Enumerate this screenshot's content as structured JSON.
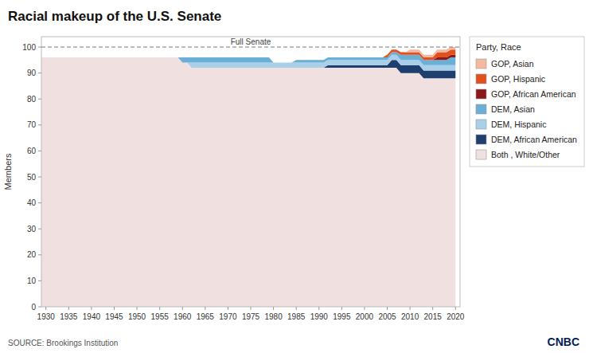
{
  "chart_data": {
    "type": "area",
    "stacked": true,
    "title": "Racial makeup of the U.S. Senate",
    "y_label": "Members",
    "source": "SOURCE: Brookings Institution",
    "legend_title": "Party, Race",
    "legend": "right",
    "grid": false,
    "xlim": [
      1929,
      2021
    ],
    "ylim": [
      0,
      104
    ],
    "yticks": [
      0,
      10,
      20,
      30,
      40,
      50,
      60,
      70,
      80,
      90,
      100
    ],
    "xticks": [
      1930,
      1935,
      1940,
      1945,
      1950,
      1955,
      1960,
      1965,
      1970,
      1975,
      1980,
      1985,
      1990,
      1995,
      2000,
      2005,
      2010,
      2015,
      2020
    ],
    "annotations": [
      {
        "text": "Full Senate",
        "y": 100
      },
      {
        "text": "CNBC"
      }
    ],
    "x": [
      1929,
      1930,
      1931,
      1932,
      1933,
      1934,
      1935,
      1936,
      1937,
      1938,
      1939,
      1940,
      1941,
      1942,
      1943,
      1944,
      1945,
      1946,
      1947,
      1948,
      1949,
      1950,
      1951,
      1952,
      1953,
      1954,
      1955,
      1956,
      1957,
      1958,
      1959,
      1960,
      1961,
      1962,
      1963,
      1964,
      1965,
      1966,
      1967,
      1968,
      1969,
      1970,
      1971,
      1972,
      1973,
      1974,
      1975,
      1976,
      1977,
      1978,
      1979,
      1980,
      1981,
      1982,
      1983,
      1984,
      1985,
      1986,
      1987,
      1988,
      1989,
      1990,
      1991,
      1992,
      1993,
      1994,
      1995,
      1996,
      1997,
      1998,
      1999,
      2000,
      2001,
      2002,
      2003,
      2004,
      2005,
      2006,
      2007,
      2008,
      2009,
      2010,
      2011,
      2012,
      2013,
      2014,
      2015,
      2016,
      2017,
      2018,
      2019,
      2020
    ],
    "series": [
      {
        "name": "Both , White/Other",
        "color": "#f0e0e0",
        "values": [
          96,
          96,
          96,
          96,
          96,
          96,
          96,
          96,
          96,
          96,
          96,
          96,
          96,
          96,
          96,
          96,
          96,
          96,
          96,
          96,
          96,
          96,
          96,
          96,
          96,
          96,
          96,
          96,
          96,
          96,
          96,
          94,
          94,
          92,
          92,
          92,
          92,
          92,
          92,
          92,
          92,
          92,
          92,
          92,
          92,
          92,
          92,
          92,
          92,
          92,
          92,
          92,
          92,
          92,
          92,
          92,
          92,
          92,
          92,
          92,
          92,
          92,
          92,
          92,
          92,
          92,
          92,
          92,
          92,
          92,
          92,
          92,
          92,
          92,
          92,
          92,
          92,
          92,
          92,
          90,
          90,
          90,
          90,
          90,
          88,
          88,
          88,
          88,
          88,
          88,
          88,
          88
        ]
      },
      {
        "name": "DEM, African American",
        "color": "#1f3f6e",
        "values": [
          0,
          0,
          0,
          0,
          0,
          0,
          0,
          0,
          0,
          0,
          0,
          0,
          0,
          0,
          0,
          0,
          0,
          0,
          0,
          0,
          0,
          0,
          0,
          0,
          0,
          0,
          0,
          0,
          0,
          0,
          0,
          0,
          0,
          0,
          0,
          0,
          0,
          0,
          0,
          0,
          0,
          0,
          0,
          0,
          0,
          0,
          0,
          0,
          0,
          0,
          0,
          0,
          0,
          0,
          0,
          0,
          0,
          0,
          0,
          0,
          0,
          0,
          0,
          1,
          1,
          1,
          1,
          1,
          1,
          1,
          1,
          1,
          1,
          1,
          1,
          1,
          1,
          3,
          3,
          3,
          3,
          3,
          3,
          3,
          3,
          3,
          3,
          3,
          3,
          3,
          3,
          3
        ]
      },
      {
        "name": "DEM, Hispanic",
        "color": "#aacfe8",
        "values": [
          0,
          0,
          0,
          0,
          0,
          0,
          0,
          0,
          0,
          0,
          0,
          0,
          0,
          0,
          0,
          0,
          0,
          0,
          0,
          0,
          0,
          0,
          0,
          0,
          0,
          0,
          0,
          0,
          0,
          0,
          0,
          0,
          0,
          2,
          2,
          2,
          2,
          2,
          2,
          2,
          2,
          2,
          2,
          2,
          2,
          2,
          2,
          2,
          2,
          2,
          2,
          2,
          2,
          2,
          2,
          2,
          2,
          2,
          2,
          2,
          2,
          2,
          2,
          2,
          2,
          2,
          2,
          2,
          2,
          2,
          2,
          2,
          2,
          2,
          2,
          2,
          2,
          2,
          2,
          2,
          2,
          2,
          2,
          2,
          2,
          2,
          2,
          2,
          2,
          2,
          2,
          2
        ]
      },
      {
        "name": "DEM, Asian",
        "color": "#6baed6",
        "values": [
          0,
          0,
          0,
          0,
          0,
          0,
          0,
          0,
          0,
          0,
          0,
          0,
          0,
          0,
          0,
          0,
          0,
          0,
          0,
          0,
          0,
          0,
          0,
          0,
          0,
          0,
          0,
          0,
          0,
          0,
          0,
          2,
          2,
          2,
          2,
          2,
          2,
          2,
          2,
          2,
          2,
          2,
          2,
          2,
          2,
          2,
          2,
          2,
          2,
          2,
          2,
          0,
          0,
          0,
          0,
          0,
          1,
          1,
          1,
          1,
          1,
          1,
          1,
          1,
          1,
          1,
          1,
          1,
          1,
          1,
          1,
          1,
          1,
          1,
          1,
          1,
          1,
          1,
          1,
          2,
          2,
          2,
          2,
          2,
          2,
          2,
          2,
          2,
          2,
          2,
          3,
          3
        ]
      },
      {
        "name": "GOP, African American",
        "color": "#8b1a1a",
        "values": [
          0,
          0,
          0,
          0,
          0,
          0,
          0,
          0,
          0,
          0,
          0,
          0,
          0,
          0,
          0,
          0,
          0,
          0,
          0,
          0,
          0,
          0,
          0,
          0,
          0,
          0,
          0,
          0,
          0,
          0,
          0,
          0,
          0,
          0,
          0,
          0,
          0,
          0,
          0,
          0,
          0,
          0,
          0,
          0,
          0,
          0,
          0,
          0,
          0,
          0,
          0,
          0,
          0,
          0,
          0,
          0,
          0,
          0,
          0,
          0,
          0,
          0,
          0,
          0,
          0,
          0,
          0,
          0,
          0,
          0,
          0,
          0,
          0,
          0,
          0,
          0,
          0,
          0,
          0,
          0,
          0,
          0,
          0,
          0,
          0,
          0,
          0,
          1,
          1,
          1,
          1,
          1
        ]
      },
      {
        "name": "GOP, Hispanic",
        "color": "#e2501e",
        "values": [
          0,
          0,
          0,
          0,
          0,
          0,
          0,
          0,
          0,
          0,
          0,
          0,
          0,
          0,
          0,
          0,
          0,
          0,
          0,
          0,
          0,
          0,
          0,
          0,
          0,
          0,
          0,
          0,
          0,
          0,
          0,
          0,
          0,
          0,
          0,
          0,
          0,
          0,
          0,
          0,
          0,
          0,
          0,
          0,
          0,
          0,
          0,
          0,
          0,
          0,
          0,
          0,
          0,
          0,
          0,
          0,
          0,
          0,
          0,
          0,
          0,
          0,
          0,
          0,
          0,
          0,
          0,
          0,
          0,
          0,
          0,
          0,
          0,
          0,
          0,
          0,
          1,
          1,
          1,
          1,
          1,
          1,
          1,
          1,
          1,
          1,
          1,
          2,
          2,
          2,
          2,
          2
        ]
      },
      {
        "name": "GOP, Asian",
        "color": "#f4b8a0",
        "values": [
          0,
          0,
          0,
          0,
          0,
          0,
          0,
          0,
          0,
          0,
          0,
          0,
          0,
          0,
          0,
          0,
          0,
          0,
          0,
          0,
          0,
          0,
          0,
          0,
          0,
          0,
          0,
          0,
          0,
          0,
          0,
          0,
          0,
          0,
          0,
          0,
          0,
          0,
          0,
          0,
          0,
          0,
          0,
          0,
          0,
          0,
          0,
          0,
          0,
          0,
          0,
          0,
          0,
          0,
          0,
          0,
          0,
          0,
          0,
          0,
          0,
          0,
          0,
          0,
          0,
          0,
          0,
          0,
          0,
          0,
          0,
          0,
          0,
          0,
          0,
          0,
          0,
          0,
          0,
          0,
          0,
          1,
          1,
          1,
          1,
          1,
          1,
          1,
          1,
          1,
          1,
          1
        ]
      }
    ]
  }
}
